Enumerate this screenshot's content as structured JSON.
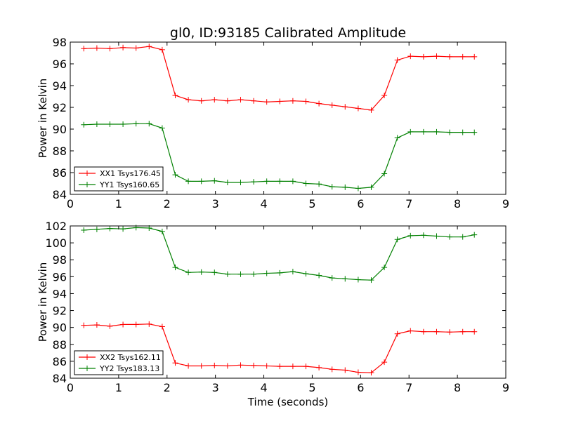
{
  "figure": {
    "title": "gl0, ID:93185 Calibrated Amplitude",
    "xlabel": "Time (seconds)"
  },
  "chart_data": [
    {
      "type": "line",
      "title": "gl0, ID:93185 Calibrated Amplitude",
      "xlabel": "",
      "ylabel": "Power in Kelvin",
      "xlim": [
        0,
        9
      ],
      "ylim": [
        84,
        98
      ],
      "xticks": [
        "0",
        "1",
        "2",
        "3",
        "4",
        "5",
        "6",
        "7",
        "8",
        "9"
      ],
      "yticks": [
        "84",
        "86",
        "88",
        "90",
        "92",
        "94",
        "96",
        "98"
      ],
      "legend_placement": "lower-left",
      "grid": false,
      "series": [
        {
          "name": "XX1 Tsys176.45",
          "color": "#ff0000",
          "marker": "plus",
          "x": [
            0.28,
            0.55,
            0.82,
            1.09,
            1.36,
            1.63,
            1.9,
            2.17,
            2.44,
            2.71,
            2.98,
            3.25,
            3.52,
            3.79,
            4.06,
            4.33,
            4.6,
            4.87,
            5.14,
            5.41,
            5.68,
            5.95,
            6.22,
            6.49,
            6.76,
            7.03,
            7.3,
            7.57,
            7.84,
            8.11,
            8.35
          ],
          "y": [
            97.4,
            97.45,
            97.4,
            97.5,
            97.45,
            97.6,
            97.3,
            93.1,
            92.7,
            92.6,
            92.7,
            92.6,
            92.7,
            92.6,
            92.5,
            92.55,
            92.6,
            92.55,
            92.35,
            92.2,
            92.05,
            91.9,
            91.75,
            93.1,
            96.35,
            96.7,
            96.65,
            96.7,
            96.65,
            96.65,
            96.65
          ]
        },
        {
          "name": "YY1 Tsys160.65",
          "color": "#008000",
          "marker": "plus",
          "x": [
            0.28,
            0.55,
            0.82,
            1.09,
            1.36,
            1.63,
            1.9,
            2.17,
            2.44,
            2.71,
            2.98,
            3.25,
            3.52,
            3.79,
            4.06,
            4.33,
            4.6,
            4.87,
            5.14,
            5.41,
            5.68,
            5.95,
            6.22,
            6.49,
            6.76,
            7.03,
            7.3,
            7.57,
            7.84,
            8.11,
            8.35
          ],
          "y": [
            90.4,
            90.45,
            90.45,
            90.45,
            90.5,
            90.5,
            90.1,
            85.8,
            85.2,
            85.2,
            85.25,
            85.1,
            85.1,
            85.15,
            85.2,
            85.2,
            85.2,
            85.0,
            84.95,
            84.7,
            84.65,
            84.55,
            84.65,
            85.9,
            89.2,
            89.75,
            89.75,
            89.75,
            89.7,
            89.7,
            89.7
          ]
        }
      ]
    },
    {
      "type": "line",
      "title": "",
      "xlabel": "Time (seconds)",
      "ylabel": "Power in Kelvin",
      "xlim": [
        0,
        9
      ],
      "ylim": [
        84,
        102
      ],
      "xticks": [
        "0",
        "1",
        "2",
        "3",
        "4",
        "5",
        "6",
        "7",
        "8",
        "9"
      ],
      "yticks": [
        "84",
        "86",
        "88",
        "90",
        "92",
        "94",
        "96",
        "98",
        "100",
        "102"
      ],
      "legend_placement": "lower-left",
      "grid": false,
      "series": [
        {
          "name": "XX2 Tsys162.11",
          "color": "#ff0000",
          "marker": "plus",
          "x": [
            0.28,
            0.55,
            0.82,
            1.09,
            1.36,
            1.63,
            1.9,
            2.17,
            2.44,
            2.71,
            2.98,
            3.25,
            3.52,
            3.79,
            4.06,
            4.33,
            4.6,
            4.87,
            5.14,
            5.41,
            5.68,
            5.95,
            6.22,
            6.49,
            6.76,
            7.03,
            7.3,
            7.57,
            7.84,
            8.11,
            8.35
          ],
          "y": [
            90.25,
            90.3,
            90.15,
            90.35,
            90.35,
            90.4,
            90.1,
            85.8,
            85.45,
            85.45,
            85.5,
            85.45,
            85.55,
            85.5,
            85.45,
            85.4,
            85.4,
            85.4,
            85.25,
            85.05,
            84.95,
            84.7,
            84.65,
            85.9,
            89.25,
            89.6,
            89.5,
            89.5,
            89.45,
            89.5,
            89.5
          ]
        },
        {
          "name": "YY2 Tsys183.13",
          "color": "#008000",
          "marker": "plus",
          "x": [
            0.28,
            0.55,
            0.82,
            1.09,
            1.36,
            1.63,
            1.9,
            2.17,
            2.44,
            2.71,
            2.98,
            3.25,
            3.52,
            3.79,
            4.06,
            4.33,
            4.6,
            4.87,
            5.14,
            5.41,
            5.68,
            5.95,
            6.22,
            6.49,
            6.76,
            7.03,
            7.3,
            7.57,
            7.84,
            8.11,
            8.35
          ],
          "y": [
            101.5,
            101.6,
            101.7,
            101.65,
            101.8,
            101.75,
            101.35,
            97.1,
            96.5,
            96.55,
            96.5,
            96.3,
            96.3,
            96.3,
            96.4,
            96.45,
            96.6,
            96.35,
            96.15,
            95.85,
            95.75,
            95.65,
            95.6,
            97.1,
            100.4,
            100.85,
            100.9,
            100.8,
            100.7,
            100.7,
            100.95
          ]
        }
      ]
    }
  ]
}
